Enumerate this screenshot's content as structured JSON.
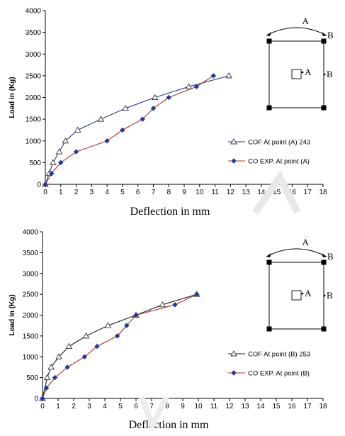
{
  "chart_data": [
    {
      "type": "line",
      "ylabel": "Load in (Kg)",
      "xlabel": "Deflection in mm",
      "xlim": [
        0,
        18
      ],
      "ylim": [
        0,
        4000
      ],
      "x_ticks": [
        "0",
        "1",
        "2",
        "3",
        "4",
        "5",
        "6",
        "7",
        "8",
        "9",
        "10",
        "11",
        "12",
        "13",
        "14",
        "15",
        "16",
        "17",
        "18"
      ],
      "y_ticks": [
        "0",
        "500",
        "1000",
        "1500",
        "2000",
        "2500",
        "3000",
        "3500",
        "4000"
      ],
      "grid": false,
      "legend_position": "bottom-right",
      "series": [
        {
          "name": "COF At point (A) 243",
          "marker": "open-triangle",
          "color": "#1f3a93",
          "x": [
            0,
            0.25,
            0.5,
            0.9,
            1.3,
            2.1,
            3.6,
            5.2,
            7.1,
            9.3,
            11.9
          ],
          "y": [
            0,
            250,
            500,
            750,
            1000,
            1250,
            1500,
            1750,
            2000,
            2250,
            2500
          ]
        },
        {
          "name": "CO EXP.  At point (A)",
          "marker": "filled-diamond",
          "color": "#b03020",
          "x": [
            0,
            0.4,
            1.0,
            2.0,
            4.0,
            5.0,
            6.3,
            7.0,
            8.0,
            9.8,
            10.9
          ],
          "y": [
            0,
            250,
            500,
            750,
            1000,
            1250,
            1500,
            1750,
            2000,
            2250,
            2500
          ]
        }
      ],
      "inset": {
        "label_top": "A",
        "label_right_top": "B",
        "label_center": "A",
        "label_right": "B"
      }
    },
    {
      "type": "line",
      "ylabel": "Load in (Kg)",
      "xlabel": "Deflection in mm",
      "xlim": [
        0,
        18
      ],
      "ylim": [
        0,
        4000
      ],
      "x_ticks": [
        "0",
        "1",
        "2",
        "3",
        "4",
        "5",
        "6",
        "7",
        "8",
        "9",
        "10",
        "11",
        "12",
        "13",
        "14",
        "15",
        "16",
        "17",
        "18"
      ],
      "y_ticks": [
        "0",
        "500",
        "1000",
        "1500",
        "2000",
        "2500",
        "3000",
        "3500",
        "4000"
      ],
      "grid": false,
      "legend_position": "bottom-right",
      "series": [
        {
          "name": "COF At point (B) 253",
          "marker": "open-triangle",
          "color": "#1a1a1a",
          "x": [
            0,
            0.3,
            0.55,
            1.05,
            1.7,
            2.8,
            4.2,
            6.0,
            7.7,
            9.9
          ],
          "y": [
            0,
            500,
            750,
            1000,
            1250,
            1500,
            1750,
            2000,
            2250,
            2500
          ]
        },
        {
          "name": "CO EXP.  At point (B)",
          "marker": "filled-diamond",
          "color": "#b03020",
          "x": [
            0,
            0.25,
            0.8,
            1.6,
            2.7,
            3.5,
            4.8,
            5.4,
            6.0,
            8.5,
            9.9
          ],
          "y": [
            0,
            250,
            500,
            750,
            1000,
            1250,
            1500,
            1750,
            2000,
            2250,
            2500
          ]
        }
      ],
      "inset": {
        "label_top": "A",
        "label_right_top": "B",
        "label_center": "A",
        "label_right": "B"
      }
    }
  ]
}
